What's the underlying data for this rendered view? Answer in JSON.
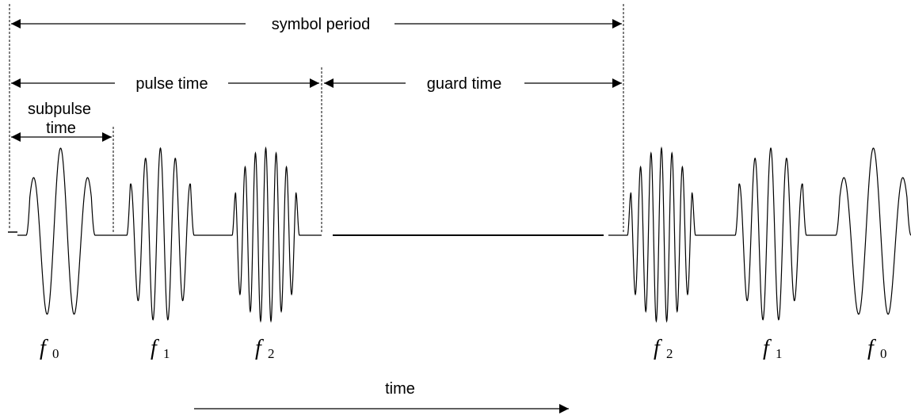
{
  "labels": {
    "symbol_period": "symbol period",
    "pulse_time": "pulse time",
    "guard_time": "guard time",
    "subpulse_time": [
      "subpulse",
      "time"
    ],
    "time": "time"
  },
  "pulses": [
    {
      "symbol": "f",
      "sub": "0"
    },
    {
      "symbol": "f",
      "sub": "1"
    },
    {
      "symbol": "f",
      "sub": "2"
    },
    {
      "symbol": "f",
      "sub": "2"
    },
    {
      "symbol": "f",
      "sub": "1"
    },
    {
      "symbol": "f",
      "sub": "0"
    }
  ]
}
